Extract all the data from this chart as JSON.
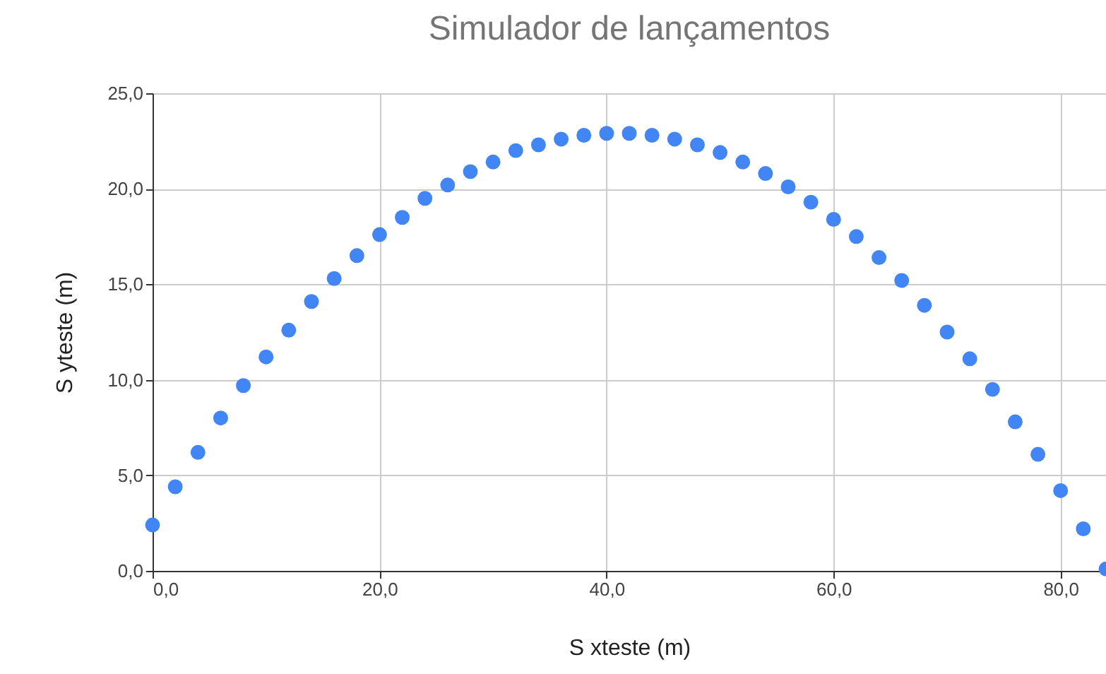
{
  "chart_data": {
    "type": "scatter",
    "title": "Simulador de lançamentos",
    "xlabel": "S xteste (m)",
    "ylabel": "S yteste (m)",
    "x": [
      0,
      2,
      4,
      6,
      8,
      10,
      12,
      14,
      16,
      18,
      20,
      22,
      24,
      26,
      28,
      30,
      32,
      34,
      36,
      38,
      40,
      42,
      44,
      46,
      48,
      50,
      52,
      54,
      56,
      58,
      60,
      62,
      64,
      66,
      68,
      70,
      72,
      74,
      76,
      78,
      80,
      82,
      84
    ],
    "series": [
      {
        "color": "#4285f4",
        "values": [
          2.4,
          4.4,
          6.2,
          8.0,
          9.7,
          11.2,
          12.6,
          14.1,
          15.3,
          16.5,
          17.6,
          18.5,
          19.5,
          20.2,
          20.9,
          21.4,
          22.0,
          22.3,
          22.6,
          22.8,
          22.9,
          22.9,
          22.8,
          22.6,
          22.3,
          21.9,
          21.4,
          20.8,
          20.1,
          19.3,
          18.4,
          17.5,
          16.4,
          15.2,
          13.9,
          12.5,
          11.1,
          9.5,
          7.8,
          6.1,
          4.2,
          2.2,
          0.1
        ]
      }
    ],
    "xlim": [
      0,
      84
    ],
    "xticks": [
      {
        "value": 0,
        "label": "0,0"
      },
      {
        "value": 20,
        "label": "20,0"
      },
      {
        "value": 40,
        "label": "40,0"
      },
      {
        "value": 60,
        "label": "60,0"
      },
      {
        "value": 80,
        "label": "80,0"
      }
    ],
    "ylim": [
      0,
      25
    ],
    "yticks": [
      {
        "value": 0,
        "label": "0,0"
      },
      {
        "value": 5,
        "label": "5,0"
      },
      {
        "value": 10,
        "label": "10,0"
      },
      {
        "value": 15,
        "label": "15,0"
      },
      {
        "value": 20,
        "label": "20,0"
      },
      {
        "value": 25,
        "label": "25,0"
      }
    ],
    "grid": true,
    "marker": "circle",
    "legend": false
  }
}
